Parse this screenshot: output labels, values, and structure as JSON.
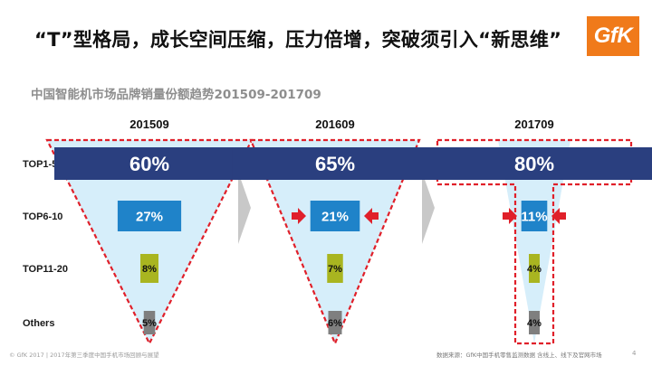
{
  "headline": "“T”型格局，成长空间压缩，压力倍增，突破须引入“新思维”",
  "logo_text": "GfK",
  "footer": {
    "left": "© GfK 2017 | 2017年第三季度中国手机市场回顾与展望",
    "right": "数据来源：GfK中国手机零售监测数据 含线上、线下及官网市场",
    "page": "4"
  },
  "colors": {
    "top1_5": "#2a3f7f",
    "top6_10": "#1f83c9",
    "top11_20": "#a9b520",
    "others": "#7f7f7f",
    "funnel_fill": "#d6eefa",
    "dash": "#e0202a",
    "arrow_red": "#e0202a",
    "chevron": "#c8c8c8"
  },
  "chart_data": {
    "type": "bar",
    "title": "中国智能机市场品牌销量份额趋势201509-201709",
    "categories": [
      "TOP1-5",
      "TOP6-10",
      "TOP11-20",
      "Others"
    ],
    "periods": [
      "201509",
      "201609",
      "201709"
    ],
    "series": [
      {
        "period": "201509",
        "values": [
          60,
          27,
          8,
          5
        ],
        "labels": [
          "60%",
          "27%",
          "8%",
          "5%"
        ]
      },
      {
        "period": "201609",
        "values": [
          65,
          21,
          7,
          6
        ],
        "labels": [
          "65%",
          "21%",
          "7%",
          "6%"
        ]
      },
      {
        "period": "201709",
        "values": [
          80,
          11,
          4,
          4
        ],
        "labels": [
          "80%",
          "11%",
          "4%",
          "4%"
        ]
      }
    ]
  }
}
